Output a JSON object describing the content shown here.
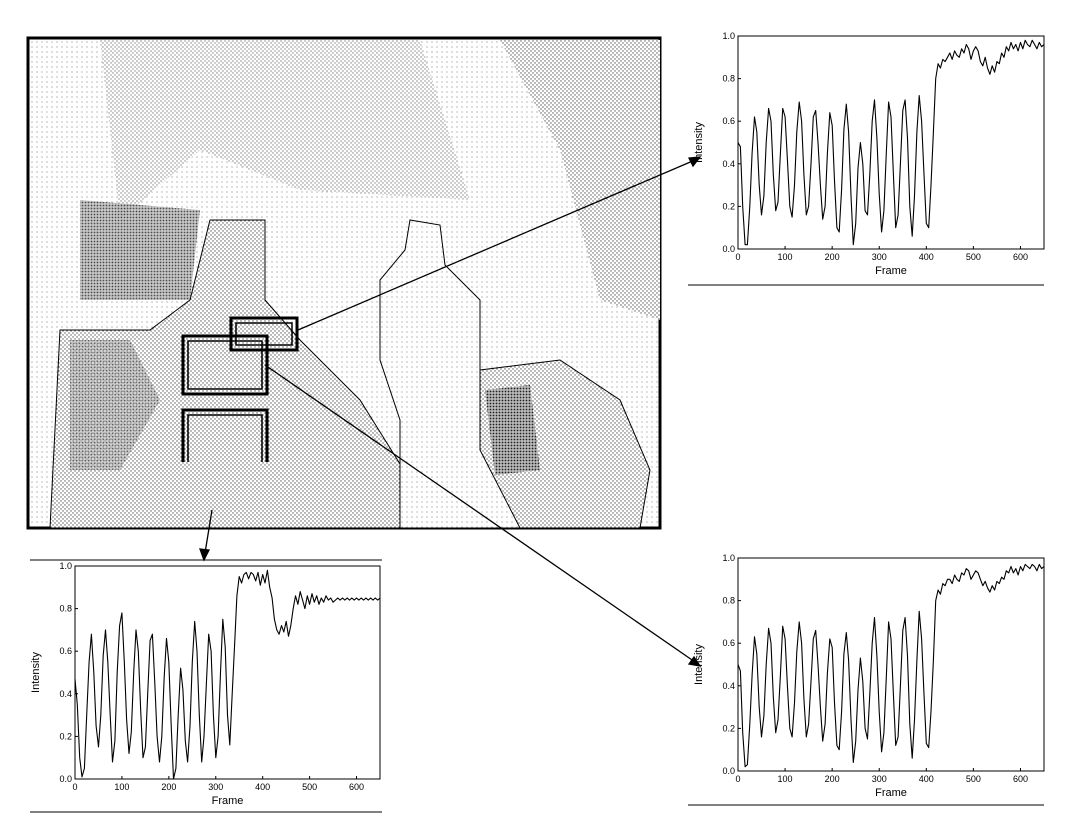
{
  "figure": {
    "photo": {
      "description_colors": {
        "ink": "#000000",
        "stipple": "#777777",
        "paper": "#ffffff"
      }
    }
  },
  "chart_data": [
    {
      "type": "line",
      "id": "top-right",
      "title": "",
      "xlabel": "Frame",
      "ylabel": "Intensity",
      "xlim": [
        0,
        650
      ],
      "ylim": [
        0,
        1.0
      ],
      "xticks": [
        "0",
        "100",
        "200",
        "300",
        "400",
        "500",
        "600"
      ],
      "yticks": [
        "0.0",
        "0.2",
        "0.4",
        "0.6",
        "0.8",
        "1.0"
      ],
      "x": [
        0,
        5,
        10,
        15,
        20,
        25,
        30,
        35,
        40,
        45,
        50,
        55,
        60,
        65,
        70,
        75,
        80,
        85,
        90,
        95,
        100,
        105,
        110,
        115,
        120,
        125,
        130,
        135,
        140,
        145,
        150,
        155,
        160,
        165,
        170,
        175,
        180,
        185,
        190,
        195,
        200,
        205,
        210,
        215,
        220,
        225,
        230,
        235,
        240,
        245,
        250,
        255,
        260,
        265,
        270,
        275,
        280,
        285,
        290,
        295,
        300,
        305,
        310,
        315,
        320,
        325,
        330,
        335,
        340,
        345,
        350,
        355,
        360,
        365,
        370,
        375,
        380,
        385,
        390,
        395,
        400,
        405,
        410,
        415,
        420,
        425,
        430,
        435,
        440,
        445,
        450,
        455,
        460,
        465,
        470,
        475,
        480,
        485,
        490,
        495,
        500,
        505,
        510,
        515,
        520,
        525,
        530,
        535,
        540,
        545,
        550,
        555,
        560,
        565,
        570,
        575,
        580,
        585,
        590,
        595,
        600,
        605,
        610,
        615,
        620,
        625,
        630,
        635,
        640,
        645,
        650
      ],
      "series": [
        {
          "values": [
            0.5,
            0.48,
            0.2,
            0.02,
            0.02,
            0.2,
            0.45,
            0.62,
            0.55,
            0.3,
            0.16,
            0.25,
            0.5,
            0.66,
            0.6,
            0.35,
            0.18,
            0.22,
            0.45,
            0.66,
            0.62,
            0.42,
            0.2,
            0.15,
            0.3,
            0.55,
            0.69,
            0.6,
            0.35,
            0.16,
            0.2,
            0.4,
            0.62,
            0.65,
            0.5,
            0.3,
            0.14,
            0.2,
            0.45,
            0.64,
            0.58,
            0.32,
            0.1,
            0.08,
            0.28,
            0.56,
            0.68,
            0.55,
            0.25,
            0.02,
            0.12,
            0.38,
            0.5,
            0.4,
            0.18,
            0.16,
            0.35,
            0.6,
            0.7,
            0.52,
            0.26,
            0.08,
            0.18,
            0.45,
            0.69,
            0.62,
            0.35,
            0.1,
            0.16,
            0.4,
            0.65,
            0.7,
            0.52,
            0.2,
            0.06,
            0.25,
            0.55,
            0.72,
            0.6,
            0.35,
            0.12,
            0.1,
            0.3,
            0.55,
            0.8,
            0.87,
            0.85,
            0.89,
            0.88,
            0.9,
            0.92,
            0.89,
            0.93,
            0.91,
            0.9,
            0.94,
            0.92,
            0.96,
            0.94,
            0.89,
            0.93,
            0.95,
            0.93,
            0.88,
            0.86,
            0.9,
            0.85,
            0.82,
            0.86,
            0.83,
            0.88,
            0.87,
            0.92,
            0.9,
            0.95,
            0.93,
            0.97,
            0.94,
            0.96,
            0.93,
            0.97,
            0.94,
            0.98,
            0.96,
            0.95,
            0.98,
            0.96,
            0.94,
            0.97,
            0.95,
            0.96
          ]
        }
      ]
    },
    {
      "type": "line",
      "id": "bottom-right",
      "title": "",
      "xlabel": "Frame",
      "ylabel": "Intensity",
      "xlim": [
        0,
        650
      ],
      "ylim": [
        0,
        1.0
      ],
      "xticks": [
        "0",
        "100",
        "200",
        "300",
        "400",
        "500",
        "600"
      ],
      "yticks": [
        "0.0",
        "0.2",
        "0.4",
        "0.6",
        "0.8",
        "1.0"
      ],
      "x": [
        0,
        5,
        10,
        15,
        20,
        25,
        30,
        35,
        40,
        45,
        50,
        55,
        60,
        65,
        70,
        75,
        80,
        85,
        90,
        95,
        100,
        105,
        110,
        115,
        120,
        125,
        130,
        135,
        140,
        145,
        150,
        155,
        160,
        165,
        170,
        175,
        180,
        185,
        190,
        195,
        200,
        205,
        210,
        215,
        220,
        225,
        230,
        235,
        240,
        245,
        250,
        255,
        260,
        265,
        270,
        275,
        280,
        285,
        290,
        295,
        300,
        305,
        310,
        315,
        320,
        325,
        330,
        335,
        340,
        345,
        350,
        355,
        360,
        365,
        370,
        375,
        380,
        385,
        390,
        395,
        400,
        405,
        410,
        415,
        420,
        425,
        430,
        435,
        440,
        445,
        450,
        455,
        460,
        465,
        470,
        475,
        480,
        485,
        490,
        495,
        500,
        505,
        510,
        515,
        520,
        525,
        530,
        535,
        540,
        545,
        550,
        555,
        560,
        565,
        570,
        575,
        580,
        585,
        590,
        595,
        600,
        605,
        610,
        615,
        620,
        625,
        630,
        635,
        640,
        645,
        650
      ],
      "series": [
        {
          "values": [
            0.5,
            0.47,
            0.18,
            0.02,
            0.03,
            0.22,
            0.45,
            0.63,
            0.55,
            0.3,
            0.16,
            0.26,
            0.5,
            0.67,
            0.6,
            0.35,
            0.18,
            0.24,
            0.45,
            0.68,
            0.62,
            0.4,
            0.2,
            0.16,
            0.32,
            0.56,
            0.7,
            0.6,
            0.34,
            0.16,
            0.22,
            0.42,
            0.62,
            0.66,
            0.5,
            0.3,
            0.14,
            0.22,
            0.46,
            0.62,
            0.58,
            0.32,
            0.12,
            0.1,
            0.28,
            0.55,
            0.65,
            0.52,
            0.24,
            0.04,
            0.14,
            0.38,
            0.53,
            0.42,
            0.2,
            0.15,
            0.36,
            0.6,
            0.72,
            0.54,
            0.28,
            0.09,
            0.18,
            0.44,
            0.7,
            0.62,
            0.36,
            0.12,
            0.16,
            0.4,
            0.66,
            0.72,
            0.54,
            0.22,
            0.06,
            0.24,
            0.52,
            0.75,
            0.62,
            0.36,
            0.13,
            0.11,
            0.28,
            0.52,
            0.8,
            0.85,
            0.83,
            0.88,
            0.87,
            0.9,
            0.9,
            0.88,
            0.92,
            0.9,
            0.89,
            0.93,
            0.92,
            0.95,
            0.94,
            0.9,
            0.92,
            0.94,
            0.93,
            0.9,
            0.87,
            0.89,
            0.86,
            0.84,
            0.87,
            0.85,
            0.89,
            0.88,
            0.91,
            0.9,
            0.94,
            0.93,
            0.96,
            0.93,
            0.95,
            0.92,
            0.96,
            0.94,
            0.97,
            0.96,
            0.95,
            0.97,
            0.96,
            0.94,
            0.97,
            0.95,
            0.96
          ]
        }
      ]
    },
    {
      "type": "line",
      "id": "bottom-left",
      "title": "",
      "xlabel": "Frame",
      "ylabel": "Intensity",
      "xlim": [
        0,
        650
      ],
      "ylim": [
        0,
        1.0
      ],
      "xticks": [
        "0",
        "100",
        "200",
        "300",
        "400",
        "500",
        "600"
      ],
      "yticks": [
        "0.0",
        "0.2",
        "0.4",
        "0.6",
        "0.8",
        "1.0"
      ],
      "x": [
        0,
        5,
        10,
        15,
        20,
        25,
        30,
        35,
        40,
        45,
        50,
        55,
        60,
        65,
        70,
        75,
        80,
        85,
        90,
        95,
        100,
        105,
        110,
        115,
        120,
        125,
        130,
        135,
        140,
        145,
        150,
        155,
        160,
        165,
        170,
        175,
        180,
        185,
        190,
        195,
        200,
        205,
        210,
        215,
        220,
        225,
        230,
        235,
        240,
        245,
        250,
        255,
        260,
        265,
        270,
        275,
        280,
        285,
        290,
        295,
        300,
        305,
        310,
        315,
        320,
        325,
        330,
        335,
        340,
        345,
        350,
        355,
        360,
        365,
        370,
        375,
        380,
        385,
        390,
        395,
        400,
        405,
        410,
        415,
        420,
        425,
        430,
        435,
        440,
        445,
        450,
        455,
        460,
        465,
        470,
        475,
        480,
        485,
        490,
        495,
        500,
        505,
        510,
        515,
        520,
        525,
        530,
        535,
        540,
        545,
        550,
        555,
        560,
        565,
        570,
        575,
        580,
        585,
        590,
        595,
        600,
        605,
        610,
        615,
        620,
        625,
        630,
        635,
        640,
        645,
        650
      ],
      "series": [
        {
          "values": [
            0.47,
            0.35,
            0.1,
            0.01,
            0.05,
            0.3,
            0.55,
            0.68,
            0.5,
            0.25,
            0.15,
            0.3,
            0.58,
            0.7,
            0.55,
            0.3,
            0.08,
            0.18,
            0.5,
            0.72,
            0.78,
            0.55,
            0.28,
            0.12,
            0.22,
            0.5,
            0.7,
            0.6,
            0.32,
            0.1,
            0.15,
            0.4,
            0.65,
            0.68,
            0.45,
            0.2,
            0.08,
            0.2,
            0.48,
            0.66,
            0.55,
            0.25,
            0.0,
            0.05,
            0.3,
            0.52,
            0.42,
            0.18,
            0.08,
            0.25,
            0.55,
            0.74,
            0.6,
            0.3,
            0.08,
            0.2,
            0.45,
            0.68,
            0.6,
            0.3,
            0.1,
            0.2,
            0.5,
            0.75,
            0.62,
            0.3,
            0.16,
            0.4,
            0.62,
            0.86,
            0.95,
            0.92,
            0.96,
            0.97,
            0.94,
            0.97,
            0.96,
            0.93,
            0.97,
            0.91,
            0.96,
            0.92,
            0.98,
            0.9,
            0.85,
            0.75,
            0.7,
            0.68,
            0.72,
            0.69,
            0.74,
            0.67,
            0.72,
            0.8,
            0.86,
            0.82,
            0.88,
            0.84,
            0.8,
            0.86,
            0.82,
            0.87,
            0.83,
            0.86,
            0.82,
            0.85,
            0.83,
            0.86,
            0.84,
            0.85,
            0.83,
            0.84,
            0.85,
            0.84,
            0.85,
            0.84,
            0.85,
            0.84,
            0.85,
            0.84,
            0.85,
            0.84,
            0.85,
            0.84,
            0.85,
            0.84,
            0.85,
            0.84,
            0.85,
            0.84,
            0.85
          ]
        }
      ]
    }
  ]
}
